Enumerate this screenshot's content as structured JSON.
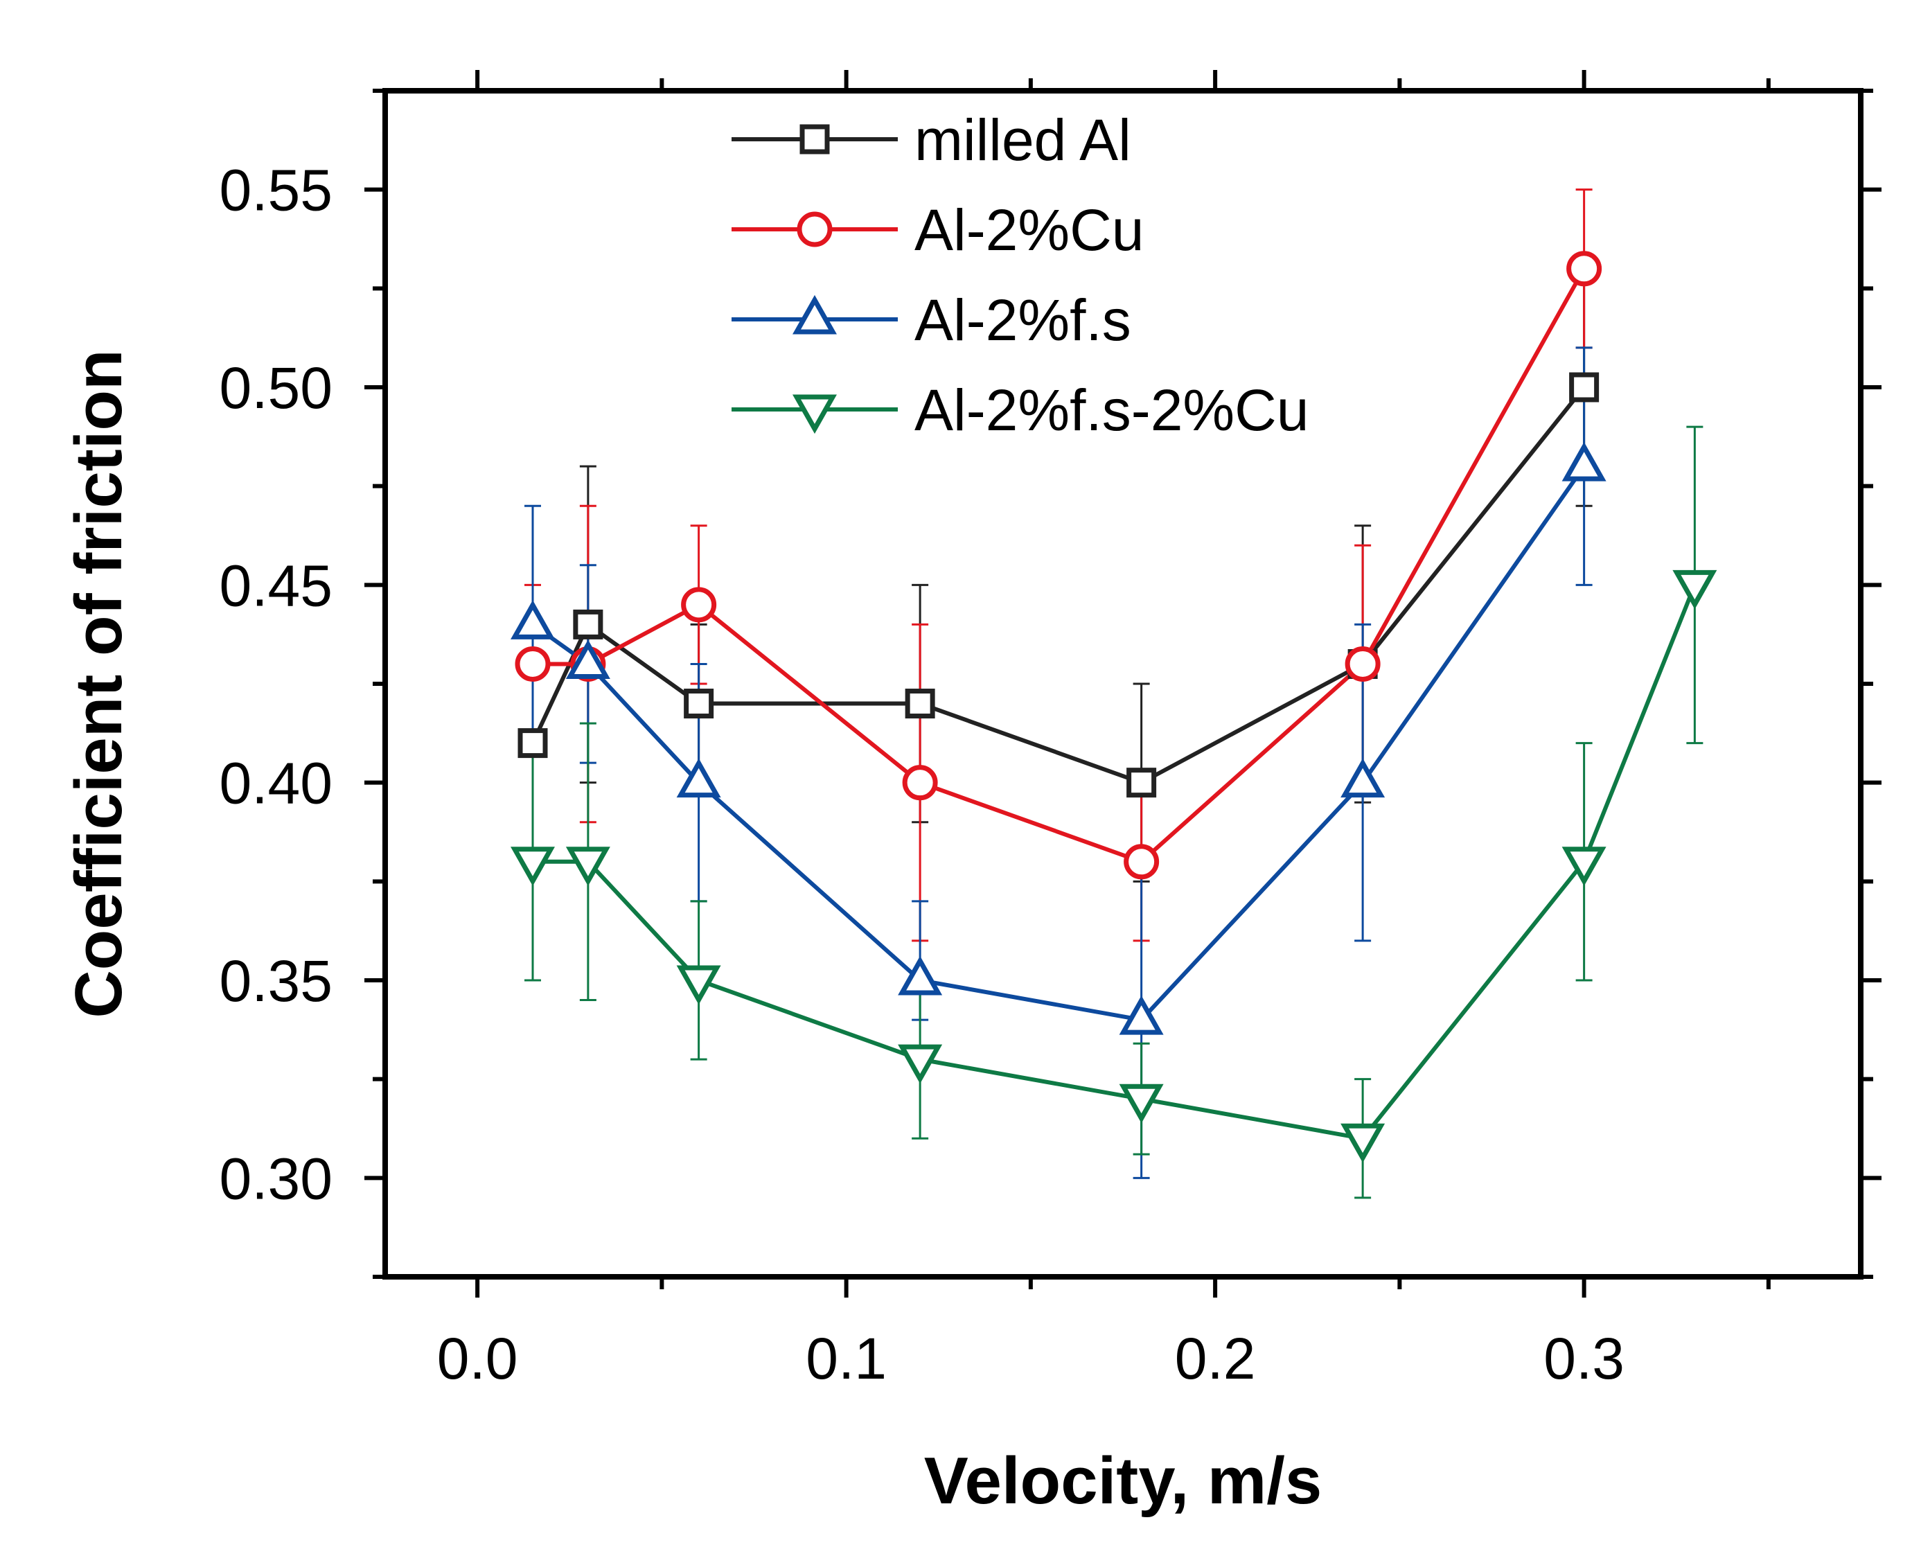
{
  "chart_data": {
    "type": "line",
    "title": "",
    "xlabel": "Velocity, m/s",
    "ylabel": "Coefficient of friction",
    "xlim": [
      -0.025,
      0.375
    ],
    "ylim": [
      0.275,
      0.575
    ],
    "xticks": [
      "0.0",
      "0.1",
      "0.2",
      "0.3"
    ],
    "yticks": [
      "0.30",
      "0.35",
      "0.40",
      "0.45",
      "0.50",
      "0.55"
    ],
    "legend_position": "top-center",
    "series": [
      {
        "name": "milled Al",
        "color": "#222222",
        "marker": "square",
        "x": [
          0.015,
          0.03,
          0.06,
          0.12,
          0.18,
          0.24,
          0.3
        ],
        "y": [
          0.41,
          0.44,
          0.42,
          0.42,
          0.4,
          0.43,
          0.5
        ],
        "err_low": [
          0.38,
          0.4,
          0.4,
          0.39,
          0.375,
          0.395,
          0.47
        ],
        "err_high": [
          0.44,
          0.48,
          0.44,
          0.45,
          0.425,
          0.465,
          0.53
        ]
      },
      {
        "name": "Al-2%Cu",
        "color": "#e2161f",
        "marker": "circle",
        "x": [
          0.015,
          0.03,
          0.06,
          0.12,
          0.18,
          0.24,
          0.3
        ],
        "y": [
          0.43,
          0.43,
          0.445,
          0.4,
          0.38,
          0.43,
          0.53
        ],
        "err_low": [
          0.41,
          0.39,
          0.425,
          0.36,
          0.36,
          0.4,
          0.51
        ],
        "err_high": [
          0.45,
          0.47,
          0.465,
          0.44,
          0.4,
          0.46,
          0.55
        ]
      },
      {
        "name": "Al-2%f.s",
        "color": "#0d4a9e",
        "marker": "triangle-up",
        "x": [
          0.015,
          0.03,
          0.06,
          0.12,
          0.18,
          0.24,
          0.3
        ],
        "y": [
          0.44,
          0.43,
          0.4,
          0.35,
          0.34,
          0.4,
          0.48
        ],
        "err_low": [
          0.41,
          0.405,
          0.37,
          0.34,
          0.3,
          0.36,
          0.45
        ],
        "err_high": [
          0.47,
          0.455,
          0.43,
          0.37,
          0.38,
          0.44,
          0.51
        ]
      },
      {
        "name": "Al-2%f.s-2%Cu",
        "color": "#0e7a45",
        "marker": "triangle-down",
        "x": [
          0.015,
          0.03,
          0.06,
          0.12,
          0.18,
          0.24,
          0.3,
          0.33
        ],
        "y": [
          0.38,
          0.38,
          0.35,
          0.33,
          0.32,
          0.31,
          0.38,
          0.45
        ],
        "err_low": [
          0.35,
          0.345,
          0.33,
          0.31,
          0.306,
          0.295,
          0.35,
          0.41
        ],
        "err_high": [
          0.41,
          0.415,
          0.37,
          0.35,
          0.334,
          0.325,
          0.41,
          0.49
        ]
      }
    ]
  }
}
